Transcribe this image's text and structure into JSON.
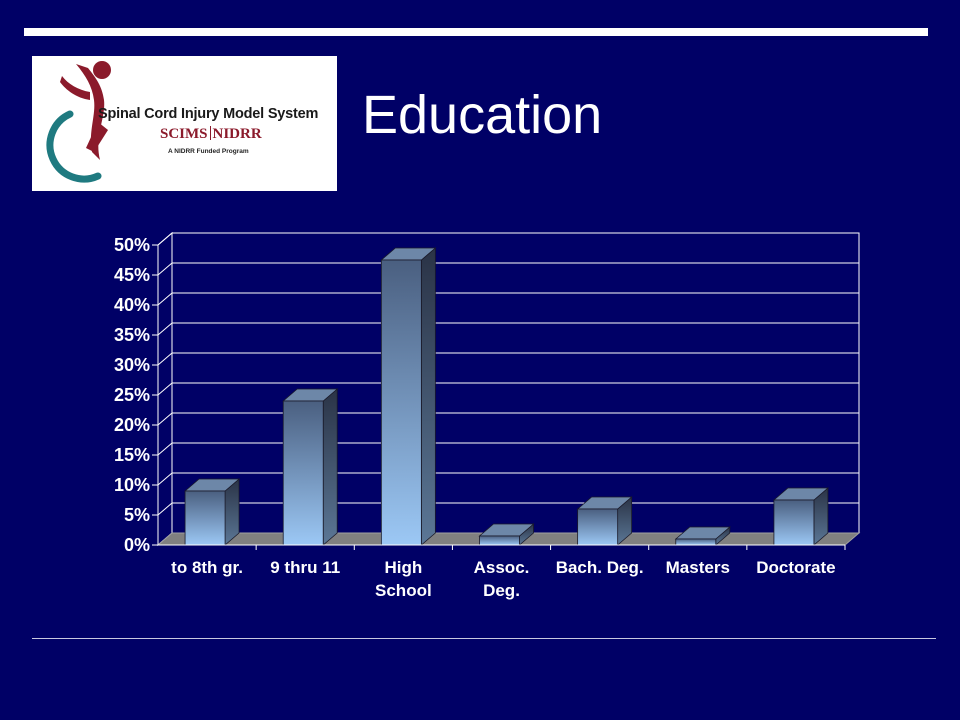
{
  "slide": {
    "title": "Education"
  },
  "logo": {
    "name": "Spinal Cord Injury Model System",
    "sub_left": "SCIMS",
    "sub_right": "NIDRR",
    "tagline": "A NIDRR Funded Program"
  },
  "chart_data": {
    "type": "bar",
    "title": "",
    "xlabel": "",
    "ylabel": "",
    "categories": [
      [
        "to 8th gr."
      ],
      [
        "9 thru 11"
      ],
      [
        "High",
        "School"
      ],
      [
        "Assoc.",
        "Deg."
      ],
      [
        "Bach. Deg."
      ],
      [
        "Masters"
      ],
      [
        "Doctorate"
      ]
    ],
    "values": [
      9,
      24,
      47.5,
      1.5,
      6,
      1,
      7.5
    ],
    "ylim": [
      0,
      50
    ],
    "yticks": [
      0,
      5,
      10,
      15,
      20,
      25,
      30,
      35,
      40,
      45,
      50
    ],
    "ytick_format": "percent",
    "grid": true,
    "legend": "none",
    "style": "3d-bar"
  },
  "colors": {
    "background": "#000066",
    "bar_top": "#4a5f80",
    "bar_bottom": "#9cc8f5",
    "grid": "#ffffff",
    "floor": "#808080"
  }
}
